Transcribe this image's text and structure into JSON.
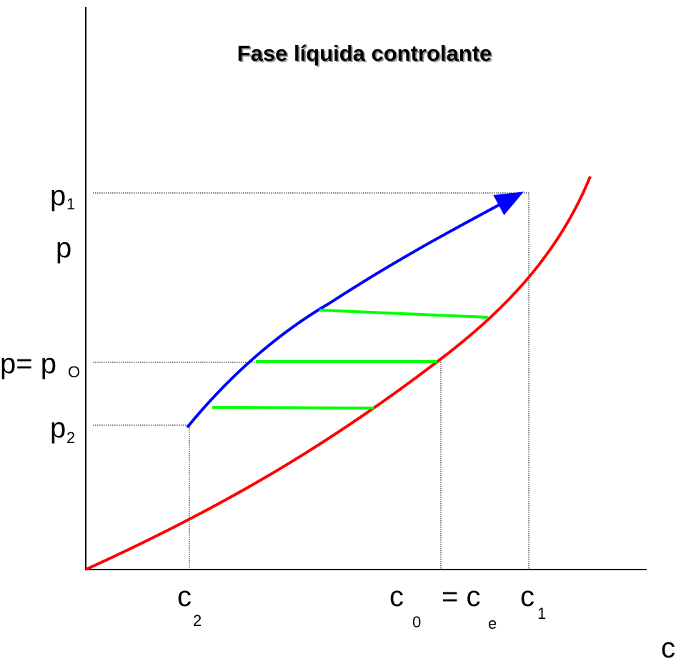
{
  "title": "Fase líquida controlante",
  "y_labels": [
    {
      "base": "p",
      "sub": "1"
    },
    {
      "base": "p"
    },
    {
      "base": "p= p",
      "sub": "O"
    },
    {
      "base": "p",
      "sub": "2"
    }
  ],
  "x_labels": [
    {
      "base": "c",
      "sub": "2"
    },
    {
      "base": "c",
      "sub": "0"
    },
    {
      "base": "= c",
      "sub": "e"
    },
    {
      "base": "c",
      "sub": "1"
    }
  ],
  "axis_label": "c"
}
